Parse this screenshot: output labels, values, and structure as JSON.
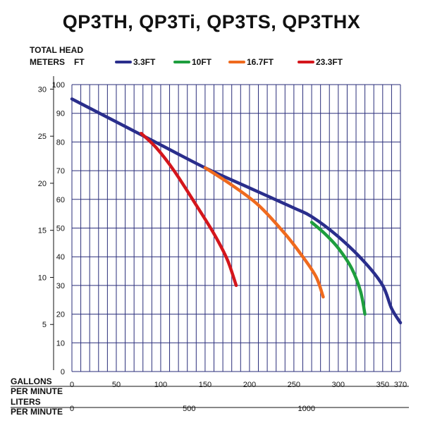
{
  "chart_data": {
    "type": "line",
    "title": "QP3TH, QP3Ti, QP3TS, QP3THX",
    "head_axis_label": "TOTAL HEAD",
    "meters_label": "METERS",
    "feet_label": "FT",
    "gallons_label_line1": "GALLONS",
    "gallons_label_line2": "PER MINUTE",
    "liters_label_line1": "LITERS",
    "liters_label_line2": "PER MINUTE",
    "xlim": [
      0,
      370
    ],
    "ylim": [
      0,
      100
    ],
    "meters_ylim": [
      0,
      30
    ],
    "x_ticks": [
      "0",
      "50",
      "100",
      "150",
      "200",
      "250",
      "300",
      "350",
      "370"
    ],
    "y_ticks_ft": [
      "0",
      "10",
      "20",
      "30",
      "40",
      "50",
      "60",
      "70",
      "80",
      "90",
      "100"
    ],
    "y_ticks_m": [
      "5",
      "10",
      "15",
      "20",
      "25",
      "30"
    ],
    "liters_ticks": [
      "0",
      "500",
      "1000"
    ],
    "grid": true,
    "legend_position": "top",
    "series": [
      {
        "name": "3.3FT",
        "color": "#2a2e8c",
        "x": [
          0,
          50,
          100,
          150,
          200,
          250,
          270,
          300,
          330,
          350,
          360,
          370
        ],
        "y": [
          95,
          87,
          79,
          71,
          64,
          57,
          54,
          47,
          38,
          30,
          22,
          17
        ]
      },
      {
        "name": "10FT",
        "color": "#1e9e3e",
        "x": [
          270,
          285,
          300,
          315,
          325,
          330
        ],
        "y": [
          52,
          48,
          43,
          36,
          28,
          20
        ]
      },
      {
        "name": "16.7FT",
        "color": "#ef6a1e",
        "x": [
          150,
          180,
          210,
          240,
          260,
          275,
          283
        ],
        "y": [
          71,
          65,
          58,
          48,
          40,
          33,
          26
        ]
      },
      {
        "name": "23.3FT",
        "color": "#d4161c",
        "x": [
          78,
          95,
          115,
          140,
          160,
          175,
          185
        ],
        "y": [
          83,
          78,
          70,
          58,
          48,
          39,
          30
        ]
      }
    ]
  }
}
